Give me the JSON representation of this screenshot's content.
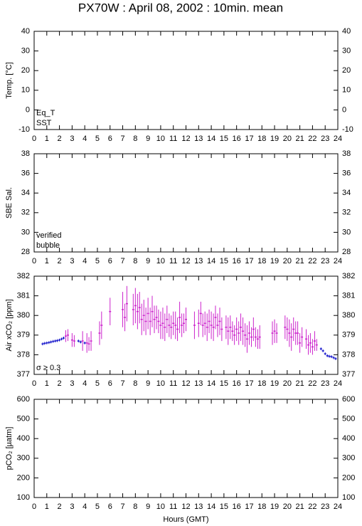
{
  "title": "PX70W : April 08, 2002 : 10min. mean",
  "chart_data": [
    {
      "type": "line",
      "ylabel": "Temp. [°C]",
      "xlim": [
        0,
        24
      ],
      "xticks": [
        0,
        1,
        2,
        3,
        4,
        5,
        6,
        7,
        8,
        9,
        10,
        11,
        12,
        13,
        14,
        15,
        16,
        17,
        18,
        19,
        20,
        21,
        22,
        23,
        24
      ],
      "ylim": [
        -10,
        40
      ],
      "yticks": [
        -10,
        0,
        10,
        20,
        30,
        40
      ],
      "series": [
        {
          "name": "Eq_T",
          "color": "#cc0000",
          "x": [],
          "values": []
        },
        {
          "name": "SST",
          "color": "#1a1acc",
          "x": [],
          "values": []
        }
      ]
    },
    {
      "type": "line",
      "ylabel": "SBE Sal.",
      "xlim": [
        0,
        24
      ],
      "xticks": [
        0,
        1,
        2,
        3,
        4,
        5,
        6,
        7,
        8,
        9,
        10,
        11,
        12,
        13,
        14,
        15,
        16,
        17,
        18,
        19,
        20,
        21,
        22,
        23,
        24
      ],
      "ylim": [
        28,
        38
      ],
      "yticks": [
        28,
        30,
        32,
        34,
        36,
        38
      ],
      "series": [
        {
          "name": "verified",
          "color": "#1a1acc",
          "x": [],
          "values": []
        },
        {
          "name": "bubble",
          "color": "#cc22cc",
          "x": [],
          "values": []
        }
      ]
    },
    {
      "type": "scatter",
      "ylabel": "Air xCO₂ [ppm]",
      "xlim": [
        0,
        24
      ],
      "xticks": [
        0,
        1,
        2,
        3,
        4,
        5,
        6,
        7,
        8,
        9,
        10,
        11,
        12,
        13,
        14,
        15,
        16,
        17,
        18,
        19,
        20,
        21,
        22,
        23,
        24
      ],
      "ylim": [
        377,
        382
      ],
      "yticks": [
        377,
        378,
        379,
        380,
        381,
        382
      ],
      "series": [
        {
          "color": "#1a1acc",
          "x": [
            0.67,
            0.83,
            1.0,
            1.17,
            1.33,
            1.5,
            1.67,
            1.83,
            2.0,
            2.17,
            2.33,
            3.5,
            3.67,
            4.0,
            22.67,
            22.83,
            23.0,
            23.17,
            23.33,
            23.5,
            23.67,
            23.83
          ],
          "values": [
            378.55,
            378.58,
            378.6,
            378.62,
            378.65,
            378.68,
            378.7,
            378.72,
            378.75,
            378.8,
            378.85,
            378.7,
            378.65,
            378.6,
            378.3,
            378.2,
            378.05,
            377.95,
            377.92,
            377.9,
            377.85,
            377.8
          ]
        },
        {
          "name": "σ ≥ 0.3",
          "color": "#cc22cc",
          "x": [
            2.5,
            2.67,
            3.0,
            3.17,
            3.83,
            4.17,
            4.33,
            4.5,
            5.17,
            5.33,
            6.0,
            7.0,
            7.17,
            7.33,
            7.83,
            8.0,
            8.17,
            8.33,
            8.5,
            8.67,
            8.83,
            9.0,
            9.17,
            9.33,
            9.5,
            9.67,
            9.83,
            10.0,
            10.17,
            10.33,
            10.5,
            10.67,
            10.83,
            11.0,
            11.17,
            11.33,
            11.5,
            11.67,
            11.83,
            12.0,
            12.67,
            13.0,
            13.17,
            13.33,
            13.5,
            13.67,
            13.83,
            14.0,
            14.17,
            14.33,
            14.5,
            14.67,
            14.83,
            15.17,
            15.33,
            15.5,
            15.67,
            15.83,
            16.0,
            16.17,
            16.33,
            16.5,
            16.67,
            16.83,
            17.0,
            17.17,
            17.33,
            17.5,
            17.67,
            17.83,
            18.83,
            19.0,
            19.17,
            19.83,
            20.0,
            20.17,
            20.33,
            20.5,
            20.67,
            20.83,
            21.0,
            21.17,
            21.5,
            21.67,
            21.83,
            22.0,
            22.17,
            22.33
          ],
          "values": [
            378.95,
            379.0,
            378.75,
            378.7,
            378.7,
            378.6,
            378.55,
            378.7,
            379.1,
            379.5,
            380.2,
            380.3,
            379.9,
            380.6,
            380.3,
            380.5,
            380.2,
            380.4,
            379.8,
            380.0,
            379.7,
            380.1,
            379.7,
            380.2,
            379.8,
            379.9,
            379.7,
            379.5,
            379.6,
            379.4,
            379.8,
            379.5,
            379.4,
            379.6,
            379.5,
            379.3,
            379.9,
            379.5,
            379.6,
            379.8,
            379.5,
            379.6,
            380.1,
            379.5,
            379.6,
            379.4,
            379.7,
            379.5,
            379.4,
            379.9,
            379.5,
            379.7,
            379.3,
            379.4,
            379.2,
            379.4,
            379.2,
            379.0,
            379.3,
            379.1,
            379.4,
            379.2,
            379.0,
            378.8,
            379.1,
            378.9,
            379.3,
            378.9,
            378.8,
            378.9,
            379.1,
            379.2,
            379.1,
            379.4,
            379.3,
            379.1,
            378.9,
            379.3,
            379.1,
            379.1,
            378.6,
            378.9,
            378.8,
            378.5,
            378.6,
            378.4,
            378.7,
            378.5
          ],
          "errors": [
            0.3,
            0.3,
            0.35,
            0.3,
            0.5,
            0.5,
            0.35,
            0.5,
            0.6,
            0.7,
            0.7,
            0.9,
            0.7,
            0.9,
            0.8,
            0.9,
            0.9,
            0.8,
            0.8,
            0.8,
            0.7,
            0.8,
            0.7,
            0.8,
            0.7,
            0.6,
            0.6,
            0.7,
            0.8,
            0.7,
            0.7,
            0.6,
            0.6,
            0.6,
            0.7,
            0.6,
            0.8,
            0.6,
            0.5,
            0.6,
            0.7,
            0.7,
            0.6,
            0.6,
            0.6,
            0.7,
            0.6,
            0.7,
            0.7,
            0.6,
            0.6,
            0.7,
            0.6,
            0.6,
            0.7,
            0.6,
            0.5,
            0.5,
            0.6,
            0.6,
            0.7,
            0.7,
            0.6,
            0.7,
            0.6,
            0.5,
            0.6,
            0.5,
            0.5,
            0.6,
            0.6,
            0.6,
            0.5,
            0.6,
            0.6,
            0.7,
            0.7,
            0.6,
            0.6,
            0.6,
            0.5,
            0.5,
            0.5,
            0.5,
            0.5,
            0.4,
            0.5,
            0.3
          ]
        }
      ]
    },
    {
      "type": "line",
      "ylabel": "pCO₂ [µatm]",
      "xlabel": "Hours (GMT)",
      "xlim": [
        0,
        24
      ],
      "xticks": [
        0,
        1,
        2,
        3,
        4,
        5,
        6,
        7,
        8,
        9,
        10,
        11,
        12,
        13,
        14,
        15,
        16,
        17,
        18,
        19,
        20,
        21,
        22,
        23,
        24
      ],
      "ylim": [
        100,
        600
      ],
      "yticks": [
        100,
        200,
        300,
        400,
        500,
        600
      ],
      "series": []
    }
  ]
}
